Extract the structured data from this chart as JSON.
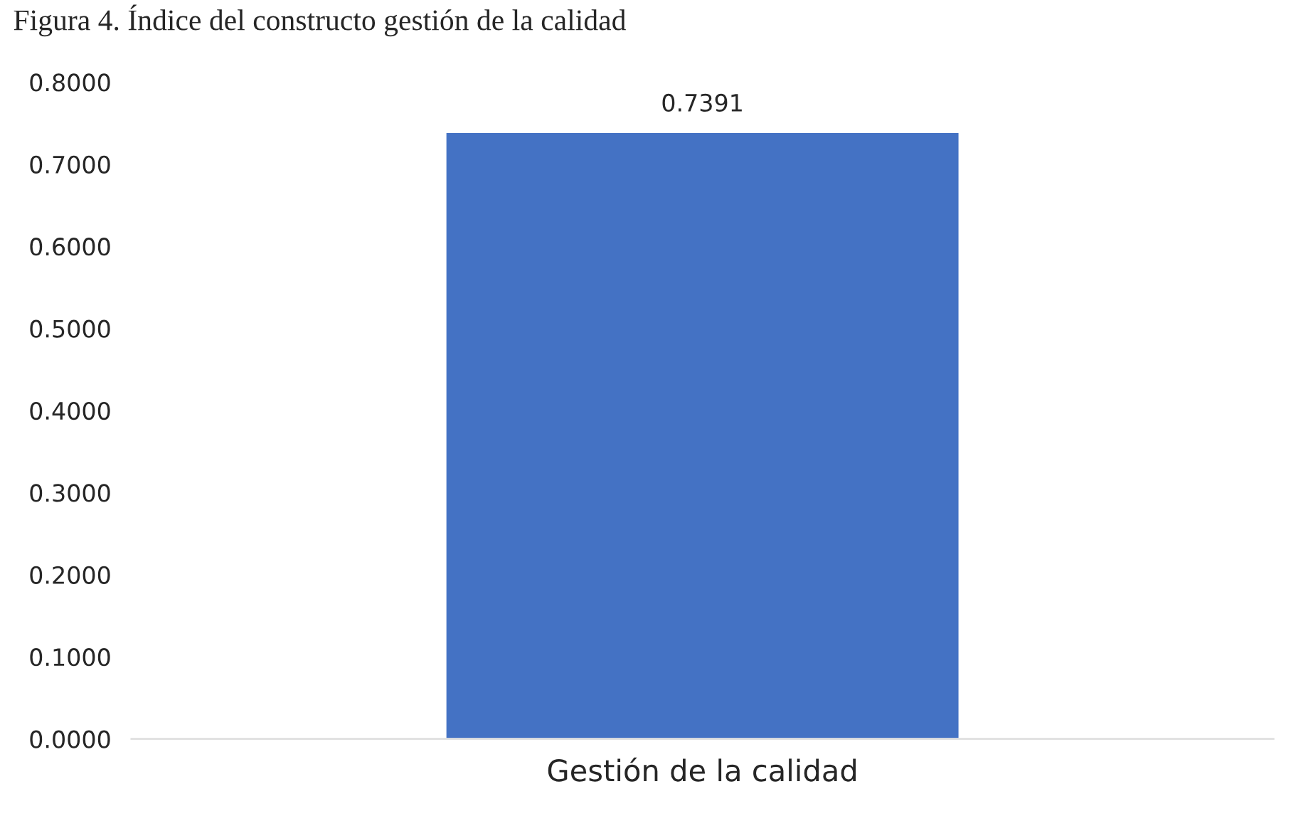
{
  "chart_data": {
    "type": "bar",
    "title": "Figura 4. Índice del constructo gestión de la calidad",
    "categories": [
      "Gestión de la calidad"
    ],
    "values": [
      0.7391
    ],
    "color": "#4472c4",
    "ylim": [
      0,
      0.8
    ],
    "yticks": [
      {
        "value": 0,
        "label": "0.0000"
      },
      {
        "value": 0.1,
        "label": "0.1000"
      },
      {
        "value": 0.2,
        "label": "0.2000"
      },
      {
        "value": 0.3,
        "label": "0.3000"
      },
      {
        "value": 0.4,
        "label": "0.4000"
      },
      {
        "value": 0.5,
        "label": "0.5000"
      },
      {
        "value": 0.6,
        "label": "0.6000"
      },
      {
        "value": 0.7,
        "label": "0.7000"
      },
      {
        "value": 0.8,
        "label": "0.8000"
      }
    ],
    "value_labels": [
      "0.7391"
    ],
    "grid": false
  }
}
